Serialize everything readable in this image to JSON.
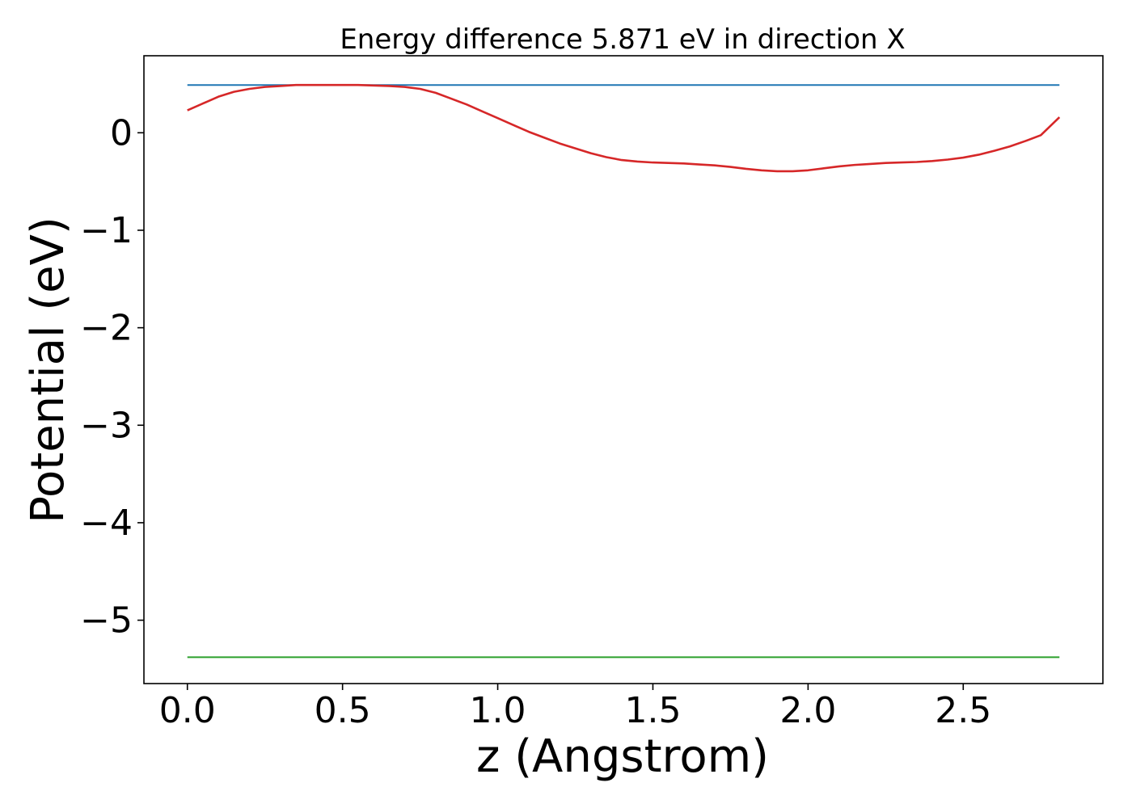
{
  "chart_data": {
    "type": "line",
    "title": "Energy difference 5.871 eV in direction X",
    "xlabel": "z (Angstrom)",
    "ylabel": "Potential (eV)",
    "xlim": [
      -0.14,
      2.95
    ],
    "ylim": [
      -5.65,
      0.79
    ],
    "xticks": [
      0.0,
      0.5,
      1.0,
      1.5,
      2.0,
      2.5
    ],
    "xtick_labels": [
      "0.0",
      "0.5",
      "1.0",
      "1.5",
      "2.0",
      "2.5"
    ],
    "yticks": [
      0,
      -1,
      -2,
      -3,
      -4,
      -5
    ],
    "ytick_labels": [
      "0",
      "−1",
      "−2",
      "−3",
      "−4",
      "−5"
    ],
    "grid": false,
    "legend": false,
    "series": [
      {
        "color": "#1f77b4",
        "x": [
          0.0,
          2.81
        ],
        "y": [
          0.49,
          0.49
        ]
      },
      {
        "color": "#2ca02c",
        "x": [
          0.0,
          2.81
        ],
        "y": [
          -5.38,
          -5.38
        ]
      },
      {
        "color": "#d62728",
        "x": [
          0.0,
          0.05,
          0.1,
          0.15,
          0.2,
          0.25,
          0.3,
          0.35,
          0.4,
          0.45,
          0.5,
          0.55,
          0.6,
          0.65,
          0.7,
          0.75,
          0.8,
          0.85,
          0.9,
          0.95,
          1.0,
          1.05,
          1.1,
          1.15,
          1.2,
          1.25,
          1.3,
          1.35,
          1.4,
          1.45,
          1.5,
          1.55,
          1.6,
          1.65,
          1.7,
          1.75,
          1.8,
          1.85,
          1.9,
          1.95,
          2.0,
          2.05,
          2.1,
          2.15,
          2.2,
          2.25,
          2.3,
          2.35,
          2.4,
          2.45,
          2.5,
          2.55,
          2.6,
          2.65,
          2.7,
          2.75,
          2.81
        ],
        "y": [
          0.23,
          0.3,
          0.37,
          0.42,
          0.45,
          0.47,
          0.48,
          0.49,
          0.49,
          0.49,
          0.49,
          0.49,
          0.485,
          0.48,
          0.47,
          0.45,
          0.41,
          0.35,
          0.29,
          0.22,
          0.15,
          0.08,
          0.01,
          -0.05,
          -0.11,
          -0.16,
          -0.21,
          -0.25,
          -0.28,
          -0.295,
          -0.305,
          -0.31,
          -0.315,
          -0.325,
          -0.335,
          -0.35,
          -0.37,
          -0.385,
          -0.395,
          -0.395,
          -0.385,
          -0.365,
          -0.345,
          -0.33,
          -0.32,
          -0.31,
          -0.305,
          -0.3,
          -0.29,
          -0.275,
          -0.255,
          -0.225,
          -0.185,
          -0.14,
          -0.085,
          -0.025,
          0.16
        ]
      }
    ]
  }
}
